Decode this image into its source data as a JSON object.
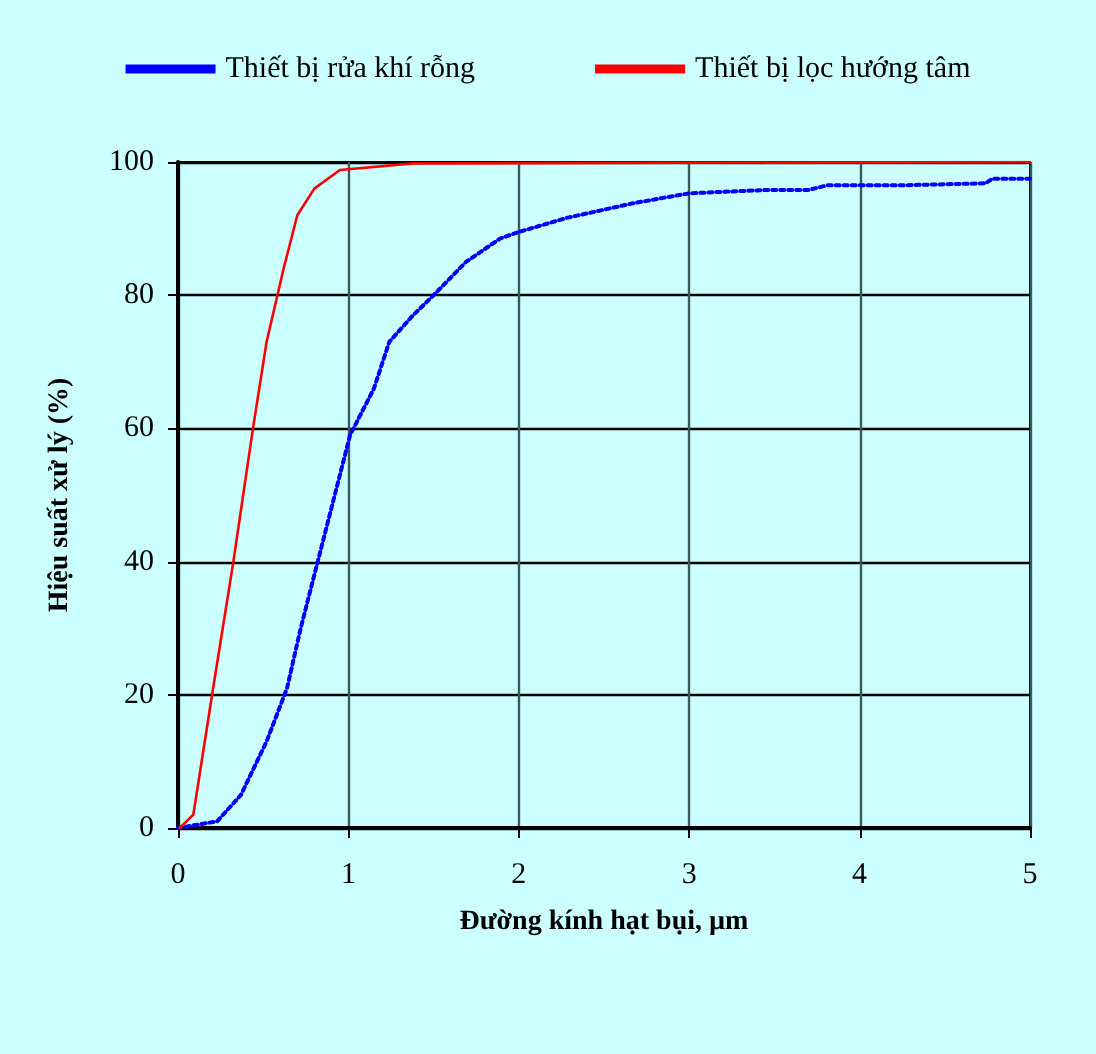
{
  "chart_data": {
    "type": "line",
    "xlabel": "Đường kính hạt bụi, µm",
    "ylabel": "Hiệu suất xử lý (%)",
    "xlim": [
      0,
      5
    ],
    "xticks": [
      0,
      1,
      2,
      3,
      4,
      5
    ],
    "ylim": [
      0,
      100
    ],
    "yticks": [
      0,
      20,
      40,
      60,
      80,
      100
    ],
    "grid": true,
    "legend": "top",
    "marker": "none",
    "series": [
      {
        "name": "Thiết bị rửa khí rỗng",
        "color": "#0000ff",
        "line_style": "dotted",
        "x": [
          0,
          0.23,
          0.37,
          0.52,
          0.64,
          0.72,
          0.83,
          0.93,
          1.01,
          1.15,
          1.24,
          1.38,
          1.5,
          1.69,
          1.89,
          2.0,
          2.28,
          2.67,
          3.0,
          3.45,
          3.7,
          3.81,
          4.24,
          4.74,
          4.78,
          5
        ],
        "values": [
          0,
          1,
          5,
          13,
          21,
          30,
          41,
          51,
          59,
          66,
          73,
          77,
          80,
          85,
          88.5,
          89.5,
          91.6,
          93.8,
          95.3,
          95.8,
          95.8,
          96.5,
          96.5,
          96.8,
          97.5,
          97.5
        ]
      },
      {
        "name": "Thiết bị lọc hướng tâm",
        "color": "#ff0000",
        "line_style": "solid",
        "x": [
          0.01,
          0.09,
          0.2,
          0.325,
          0.44,
          0.52,
          0.62,
          0.7,
          0.8,
          0.95,
          1.38,
          5
        ],
        "values": [
          0,
          2,
          20,
          40,
          60,
          73,
          84,
          92,
          96,
          98.8,
          99.8,
          100
        ]
      }
    ]
  }
}
